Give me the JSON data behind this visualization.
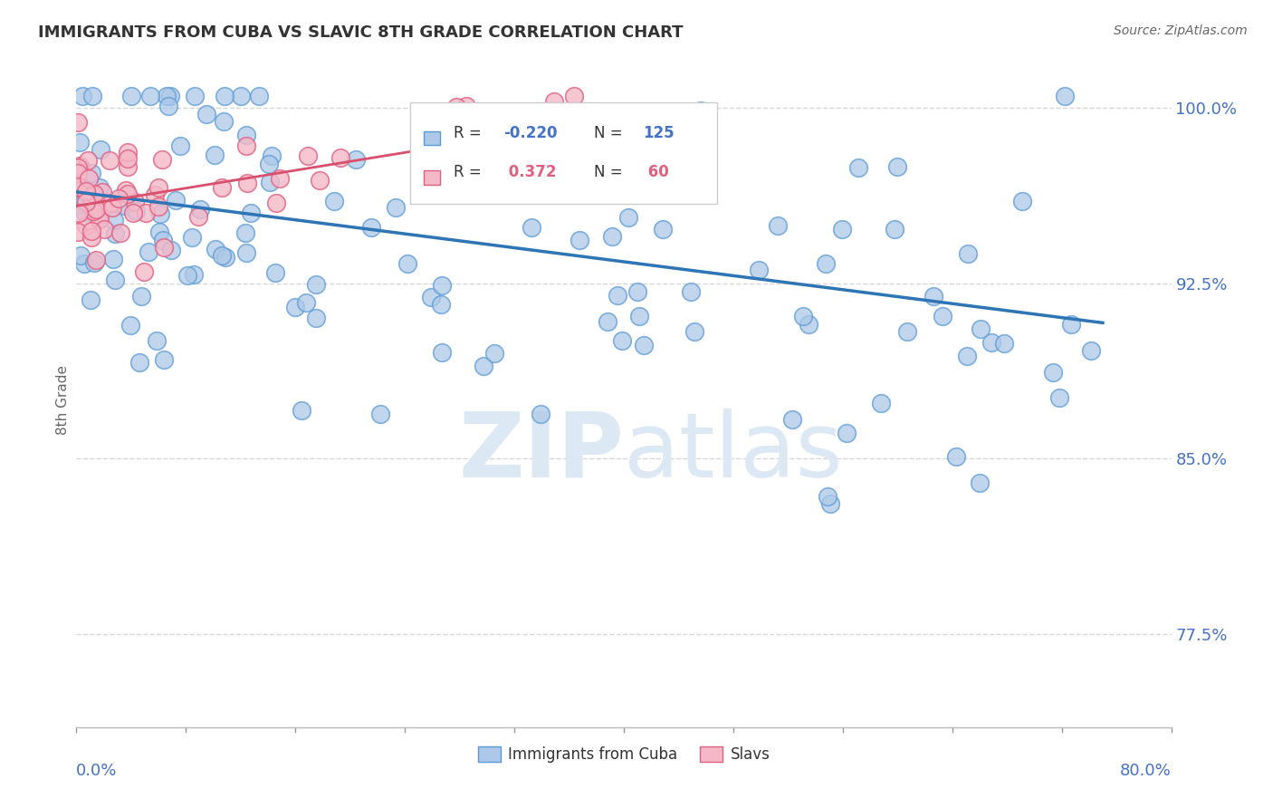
{
  "title": "IMMIGRANTS FROM CUBA VS SLAVIC 8TH GRADE CORRELATION CHART",
  "source": "Source: ZipAtlas.com",
  "ylabel": "8th Grade",
  "ytick_values": [
    1.0,
    0.925,
    0.85,
    0.775
  ],
  "ytick_labels": [
    "100.0%",
    "92.5%",
    "85.0%",
    "77.5%"
  ],
  "xlim": [
    0.0,
    0.8
  ],
  "ylim": [
    0.735,
    1.015
  ],
  "blue_scatter_color": "#adc8e8",
  "blue_edge_color": "#5b9bd5",
  "pink_scatter_color": "#f4b8c8",
  "pink_edge_color": "#e06080",
  "blue_line_color": "#2e75b6",
  "pink_line_color": "#d94f6e",
  "grid_color": "#cccccc",
  "ytick_color": "#4472c4",
  "watermark_color": "#dde8f5",
  "legend_R_blue": "R = -0.220",
  "legend_N_blue": "N = 125",
  "legend_R_pink": "R =  0.372",
  "legend_N_pink": "N =  60",
  "blue_trend_x0": 0.0,
  "blue_trend_y0": 0.964,
  "blue_trend_x1": 0.75,
  "blue_trend_y1": 0.908,
  "pink_trend_x0": 0.0,
  "pink_trend_y0": 0.958,
  "pink_trend_x1": 0.42,
  "pink_trend_y1": 0.998
}
